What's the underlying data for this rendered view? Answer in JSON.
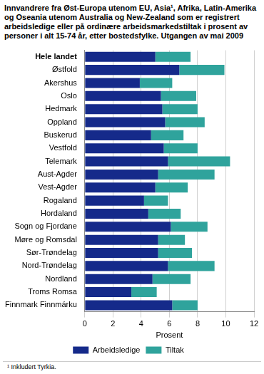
{
  "chart_data": {
    "type": "bar",
    "title": "Innvandrere fra Øst-Europa utenom EU, Asia¹, Afrika, Latin-Amerika og Oseania utenom Australia og New-Zealand som er registrert arbeidsledige eller på ordinære arbeidsmarkedstiltak i prosent av personer  i alt 15-74 år, etter bostedsfylke. Utgangen av mai 2009",
    "footnote": "¹ Inkludert Tyrkia.",
    "x_label": "Prosent",
    "orientation": "horizontal",
    "stacked": true,
    "grid": true,
    "legend": "bottom",
    "categories": [
      "Hele landet",
      "Østfold",
      "Akershus",
      "Oslo",
      "Hedmark",
      "Oppland",
      "Buskerud",
      "Vestfold",
      "Telemark",
      "Aust-Agder",
      "Vest-Agder",
      "Rogaland",
      "Hordaland",
      "Sogn og Fjordane",
      "Møre og Romsdal",
      "Sør-Trøndelag",
      "Nord-Trøndelag",
      "Nordland",
      "Troms Romsa",
      "Finnmark Finnmárku"
    ],
    "series": [
      {
        "name": "Arbeidsledige",
        "color": "#152a8a",
        "values": [
          5.0,
          6.7,
          3.9,
          5.4,
          5.5,
          5.7,
          4.7,
          5.6,
          5.9,
          5.2,
          5.0,
          4.2,
          4.5,
          6.1,
          5.2,
          5.2,
          5.9,
          4.8,
          3.3,
          6.2
        ]
      },
      {
        "name": "Tiltak",
        "color": "#2fa39c",
        "values": [
          2.5,
          3.2,
          2.3,
          2.5,
          2.5,
          2.8,
          2.3,
          2.4,
          4.4,
          4.0,
          2.3,
          1.7,
          2.3,
          2.6,
          1.9,
          2.4,
          3.3,
          2.7,
          1.8,
          1.8
        ]
      }
    ],
    "xlim": [
      0,
      12
    ],
    "xticks": [
      0,
      2,
      4,
      6,
      8,
      10,
      12
    ]
  }
}
